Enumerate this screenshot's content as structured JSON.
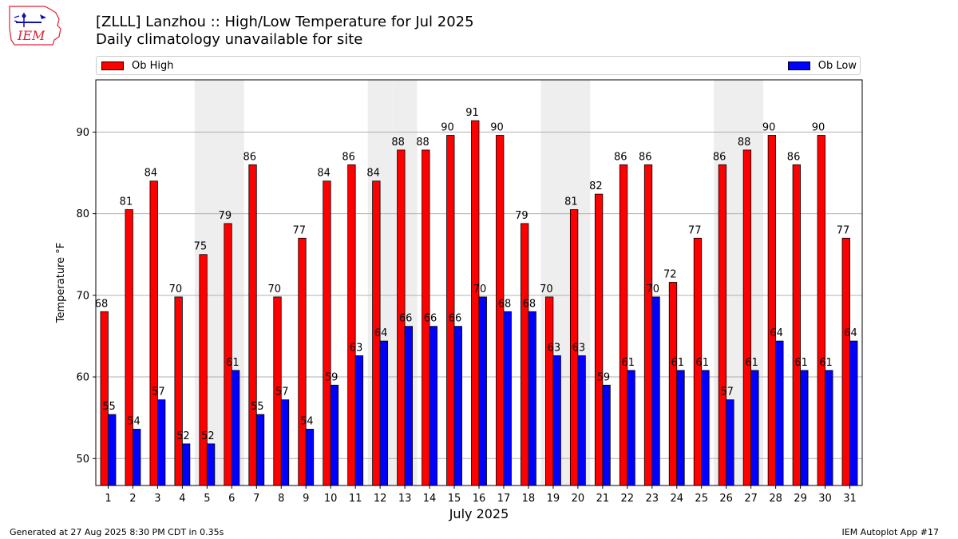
{
  "header": {
    "title_line1": "[ZLLL] Lanzhou :: High/Low Temperature for Jul 2025",
    "title_line2": "Daily climatology unavailable for site"
  },
  "logo": {
    "text": "IEM",
    "icon": "iem-logo-icon"
  },
  "footer": {
    "generated": "Generated at 27 Aug 2025 8:30 PM CDT in 0.35s",
    "app": "IEM Autoplot App #17"
  },
  "legend": {
    "high_label": "Ob High",
    "low_label": "Ob Low"
  },
  "colors": {
    "high": "#ff0000",
    "low": "#0000ff",
    "weekend_band": "#eeeeee",
    "grid": "#b0b0b0"
  },
  "chart_data": {
    "type": "bar",
    "xlabel": "July 2025",
    "ylabel": "Temperature °F",
    "categories": [
      "1",
      "2",
      "3",
      "4",
      "5",
      "6",
      "7",
      "8",
      "9",
      "10",
      "11",
      "12",
      "13",
      "14",
      "15",
      "16",
      "17",
      "18",
      "19",
      "20",
      "21",
      "22",
      "23",
      "24",
      "25",
      "26",
      "27",
      "28",
      "29",
      "30",
      "31"
    ],
    "series": [
      {
        "name": "Ob High",
        "color": "#ff0000",
        "values": [
          68,
          81,
          84,
          70,
          75,
          79,
          86,
          70,
          77,
          84,
          86,
          84,
          88,
          88,
          90,
          91,
          90,
          79,
          70,
          81,
          82,
          86,
          86,
          72,
          77,
          86,
          88,
          90,
          86,
          90,
          77
        ]
      },
      {
        "name": "Ob Low",
        "color": "#0000ff",
        "values": [
          55,
          54,
          57,
          52,
          52,
          61,
          55,
          57,
          54,
          59,
          63,
          64,
          66,
          66,
          66,
          70,
          68,
          68,
          63,
          63,
          59,
          61,
          70,
          61,
          61,
          57,
          61,
          64,
          61,
          61,
          64
        ]
      }
    ],
    "display_high": [
      68,
      80.5,
      84,
      69.8,
      75,
      78.8,
      86,
      69.8,
      77,
      84,
      86,
      84,
      87.8,
      87.8,
      89.6,
      91.4,
      89.6,
      78.8,
      69.8,
      80.5,
      82.4,
      86,
      86,
      71.6,
      77,
      86,
      87.8,
      89.6,
      86,
      89.6,
      77
    ],
    "display_low": [
      55.4,
      53.6,
      57.2,
      51.8,
      51.8,
      60.8,
      55.4,
      57.2,
      53.6,
      59,
      62.6,
      64.4,
      66.2,
      66.2,
      66.2,
      69.8,
      68,
      68,
      62.6,
      62.6,
      59,
      60.8,
      69.8,
      60.8,
      60.8,
      57.2,
      60.8,
      64.4,
      60.8,
      60.8,
      64.4
    ],
    "weekend_days": [
      5,
      6,
      12,
      13,
      19,
      20,
      26,
      27
    ],
    "ylim": [
      46.7,
      96.4
    ],
    "yticks": [
      50,
      60,
      70,
      80,
      90
    ],
    "grid": true,
    "legend_position": "top"
  }
}
